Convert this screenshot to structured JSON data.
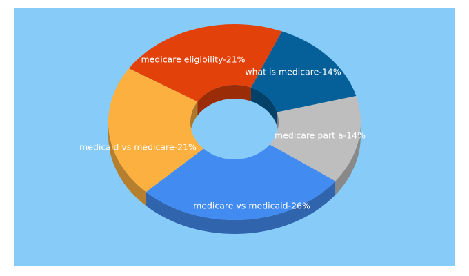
{
  "chart_data": {
    "type": "pie",
    "style": "3d-donut",
    "start_angle_deg": -68,
    "direction": "clockwise",
    "slices": [
      {
        "label": "what is medicare-14%",
        "value": 14,
        "color": "#05609a"
      },
      {
        "label": "medicare part a-14%",
        "value": 14,
        "color": "#bebebe"
      },
      {
        "label": "medicare vs medicaid-26%",
        "value": 26,
        "color": "#428bf0"
      },
      {
        "label": "medicaid vs medicare-21%",
        "value": 21,
        "color": "#fbb040"
      },
      {
        "label": "medicare eligibility-21%",
        "value": 21,
        "color": "#e2420a"
      }
    ]
  },
  "colors": {
    "panel_background": "#87cbf8"
  }
}
